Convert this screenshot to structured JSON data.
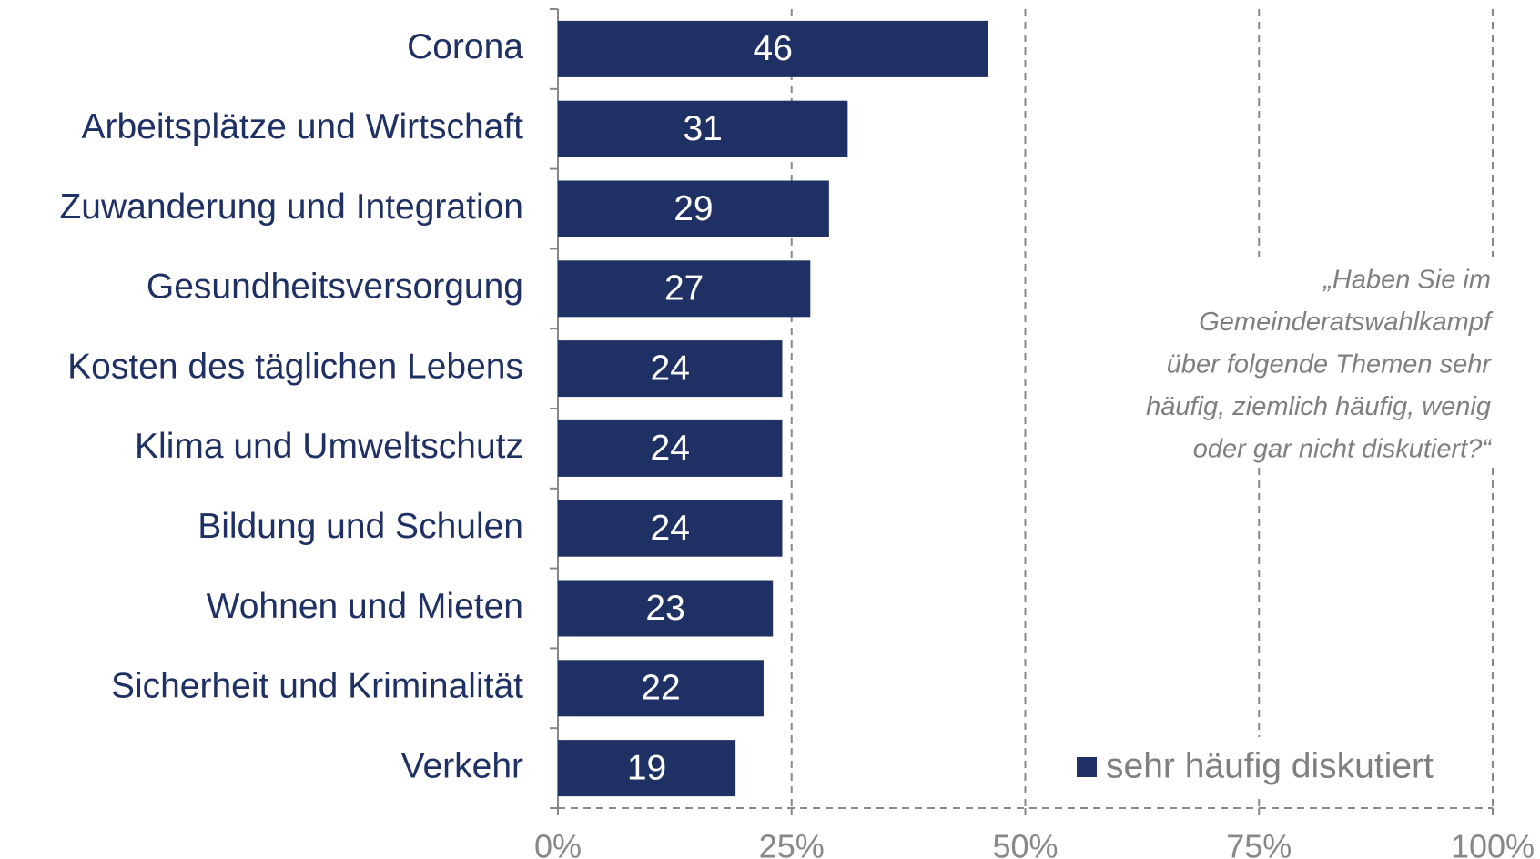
{
  "chart_data": {
    "type": "bar",
    "orientation": "horizontal",
    "categories": [
      "Corona",
      "Arbeitsplätze und Wirtschaft",
      "Zuwanderung und Integration",
      "Gesundheitsversorgung",
      "Kosten des täglichen Lebens",
      "Klima und Umweltschutz",
      "Bildung und Schulen",
      "Wohnen und Mieten",
      "Sicherheit und Kriminalität",
      "Verkehr"
    ],
    "series": [
      {
        "name": "sehr häufig diskutiert",
        "color": "#1f3064",
        "values": [
          46,
          31,
          29,
          27,
          24,
          24,
          24,
          23,
          22,
          19
        ]
      }
    ],
    "xlim": [
      0,
      100
    ],
    "xticks": [
      {
        "value": 0,
        "label": "0%"
      },
      {
        "value": 25,
        "label": "25%"
      },
      {
        "value": 50,
        "label": "50%"
      },
      {
        "value": 75,
        "label": "75%"
      },
      {
        "value": 100,
        "label": "100%"
      }
    ],
    "grid": true,
    "legend": "lower right",
    "annotation": [
      "„Haben Sie im",
      "Gemeinderatswahlkampf",
      "über folgende Themen sehr",
      "häufig, ziemlich häufig, wenig",
      "oder gar nicht diskutiert?“"
    ]
  }
}
